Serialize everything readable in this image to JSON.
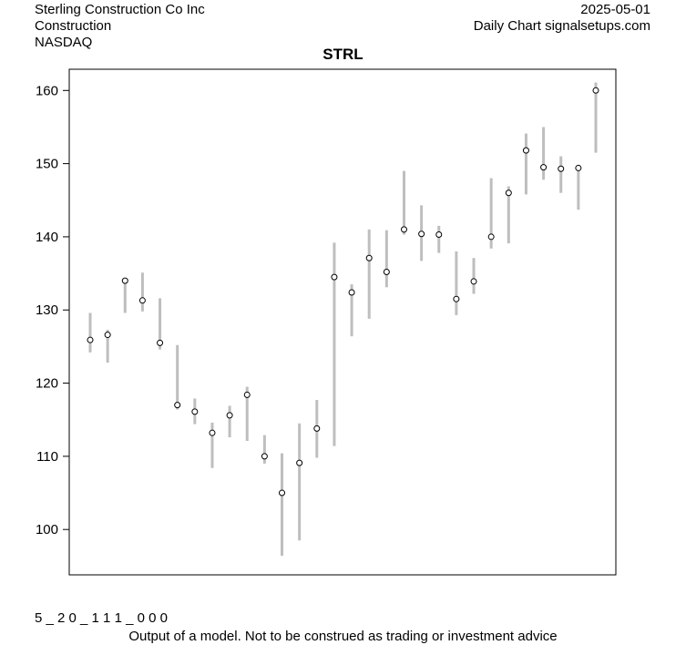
{
  "header": {
    "company": "Sterling Construction Co Inc",
    "sector": "Construction",
    "exchange": "NASDAQ",
    "date": "2025-05-01",
    "source": "Daily Chart signalsetups.com"
  },
  "footer": {
    "code": "5 _ 2 0 _ 1 1 1 _ 0 0 0",
    "disclaimer": "Output of a model. Not to be construed as trading or investment advice"
  },
  "chart_data": {
    "type": "range",
    "title": "STRL",
    "xlabel": "",
    "ylabel": "",
    "ylim": [
      93.8,
      162.9
    ],
    "yticks": [
      100,
      110,
      120,
      130,
      140,
      150,
      160
    ],
    "grid": false,
    "colors": {
      "range_bar": "#bebebe",
      "marker": "#000000"
    },
    "series": [
      {
        "low": [
          124.2,
          122.8,
          129.6,
          129.8,
          124.6,
          116.4,
          114.4,
          108.4,
          112.6,
          112.1,
          109.0,
          96.4,
          98.5,
          109.8,
          111.4,
          126.4,
          128.8,
          133.1,
          140.3,
          136.7,
          137.8,
          129.3,
          132.2,
          138.4,
          139.1,
          145.8,
          147.8,
          146.0,
          143.7,
          151.5
        ],
        "high": [
          129.6,
          127.3,
          134.3,
          135.1,
          131.6,
          125.2,
          117.9,
          114.6,
          116.9,
          119.5,
          112.9,
          110.4,
          114.5,
          117.7,
          139.2,
          133.5,
          141.0,
          140.9,
          149.0,
          144.3,
          141.5,
          138.0,
          137.1,
          148.0,
          146.9,
          154.1,
          155.0,
          151.0,
          149.4,
          161.1
        ],
        "close": [
          125.9,
          126.6,
          134.0,
          131.3,
          125.5,
          117.0,
          116.1,
          113.2,
          115.6,
          118.4,
          110.0,
          105.0,
          109.1,
          113.8,
          134.5,
          132.4,
          137.1,
          135.2,
          141.0,
          140.4,
          140.3,
          131.5,
          133.9,
          140.0,
          146.0,
          151.8,
          149.5,
          149.3,
          149.4,
          160.0
        ]
      }
    ]
  }
}
